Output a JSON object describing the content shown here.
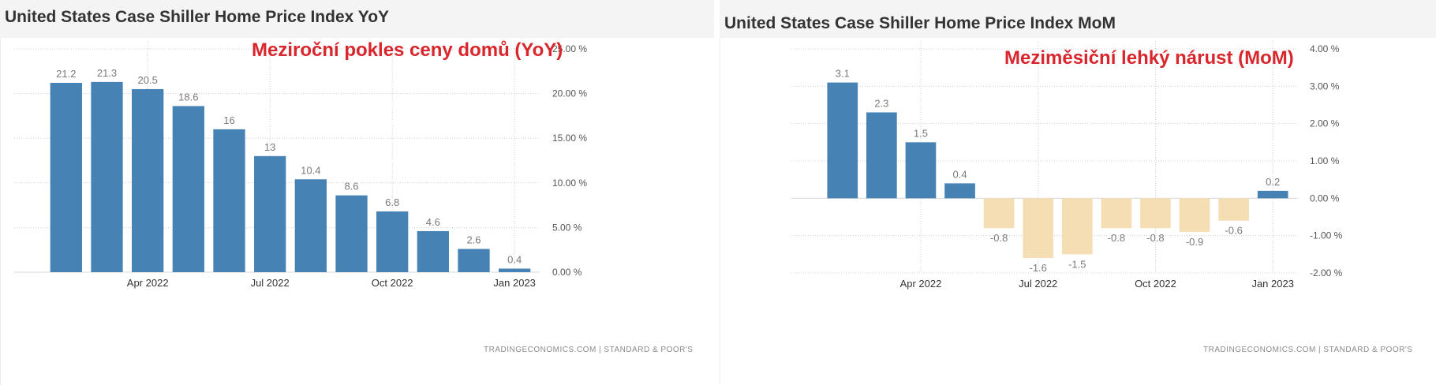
{
  "charts": [
    {
      "id": "yoy",
      "title": "United States Case Shiller Home Price Index YoY",
      "annotation": "Meziroční pokles ceny domů (YoY)",
      "source": "TRADINGECONOMICS.COM | STANDARD & POOR'S"
    },
    {
      "id": "mom",
      "title": "United States Case Shiller Home Price Index MoM",
      "annotation": "Meziměsiční lehký nárust (MoM)",
      "source": "TRADINGECONOMICS.COM | STANDARD & POOR'S"
    }
  ],
  "colors": {
    "positive": "#4682b4",
    "negative": "#f5deb3",
    "grid": "#cfcfcf",
    "label": "#7a7a7a",
    "annotation": "#d9262c"
  },
  "chart_data": [
    {
      "type": "bar",
      "title": "United States Case Shiller Home Price Index YoY",
      "categories": [
        "2022-02",
        "2022-03",
        "2022-04",
        "2022-05",
        "2022-06",
        "2022-07",
        "2022-08",
        "2022-09",
        "2022-10",
        "2022-11",
        "2022-12",
        "2023-01"
      ],
      "values": [
        21.2,
        21.3,
        20.5,
        18.6,
        16,
        13,
        10.4,
        8.6,
        6.8,
        4.6,
        2.6,
        0.4
      ],
      "value_labels": [
        "21.2",
        "21.3",
        "20.5",
        "18.6",
        "16",
        "13",
        "10.4",
        "8.6",
        "6.8",
        "4.6",
        "2.6",
        "0.4"
      ],
      "ylim": [
        0,
        25
      ],
      "yticks": [
        0,
        5,
        10,
        15,
        20,
        25
      ],
      "ytick_labels": [
        "0.00 %",
        "5.00 %",
        "10.00 %",
        "15.00 %",
        "20.00 %",
        "25.00 %"
      ],
      "xticks": [
        {
          "index": 2,
          "label": "Apr 2022"
        },
        {
          "index": 5,
          "label": "Jul 2022"
        },
        {
          "index": 8,
          "label": "Oct 2022"
        },
        {
          "index": 11,
          "label": "Jan 2023"
        }
      ],
      "yaxis_position": "right",
      "grid": true,
      "legend": "none"
    },
    {
      "type": "bar",
      "title": "United States Case Shiller Home Price Index MoM",
      "categories": [
        "2022-02",
        "2022-03",
        "2022-04",
        "2022-05",
        "2022-06",
        "2022-07",
        "2022-08",
        "2022-09",
        "2022-10",
        "2022-11",
        "2022-12",
        "2023-01"
      ],
      "values": [
        3.1,
        2.3,
        1.5,
        0.4,
        -0.8,
        -1.6,
        -1.5,
        -0.8,
        -0.8,
        -0.9,
        -0.6,
        0.2
      ],
      "value_labels": [
        "3.1",
        "2.3",
        "1.5",
        "0.4",
        "-0.8",
        "-1.6",
        "-1.5",
        "-0.8",
        "-0.8",
        "-0.9",
        "-0.6",
        "0.2"
      ],
      "ylim": [
        -2,
        4
      ],
      "yticks": [
        -2,
        -1,
        0,
        1,
        2,
        3,
        4
      ],
      "ytick_labels": [
        "-2.00 %",
        "-1.00 %",
        "0.00 %",
        "1.00 %",
        "2.00 %",
        "3.00 %",
        "4.00 %"
      ],
      "xticks": [
        {
          "index": 2,
          "label": "Apr 2022"
        },
        {
          "index": 5,
          "label": "Jul 2022"
        },
        {
          "index": 8,
          "label": "Oct 2022"
        },
        {
          "index": 11,
          "label": "Jan 2023"
        }
      ],
      "yaxis_position": "right",
      "grid": true,
      "legend": "none"
    }
  ]
}
